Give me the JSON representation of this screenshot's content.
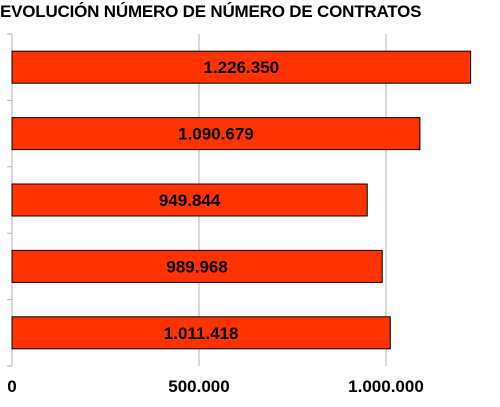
{
  "chart_data": {
    "type": "bar",
    "orientation": "horizontal",
    "title": "EVOLUCIÓN NÚMERO DE NÚMERO DE CONTRATOS",
    "values": [
      1226350,
      1090679,
      949844,
      989968,
      1011418
    ],
    "value_labels": [
      "1.226.350",
      "1.090.679",
      "949.844",
      "989.968",
      "1.011.418"
    ],
    "xlim": [
      0,
      1200000
    ],
    "xticks": [
      0,
      500000,
      1000000
    ],
    "xtick_labels": [
      "0",
      "500.000",
      "1.000.000"
    ],
    "grid": true,
    "colors": {
      "bar_fill": "#ff3300",
      "bar_stroke": "#000000",
      "grid": "#b3b3b3",
      "axis": "#b3b3b3"
    }
  }
}
